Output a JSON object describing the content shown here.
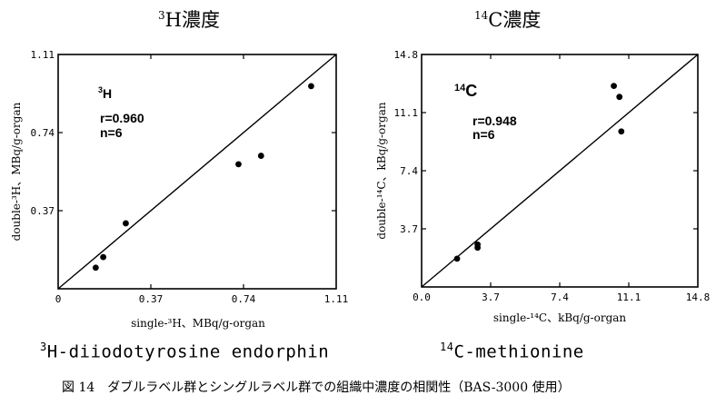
{
  "page": {
    "title_left_sup": "3",
    "title_left_text": "H濃度",
    "title_right_sup": "14",
    "title_right_text": "C濃度",
    "sub_left_sup": "3",
    "sub_left_text": "H-diiodotyrosine endorphin",
    "sub_right_sup": "14",
    "sub_right_text": "C-methionine",
    "caption": "図 14　ダブルラベル群とシングルラベル群での組織中濃度の相関性（BAS-3000 使用）"
  },
  "chart_data": [
    {
      "type": "scatter",
      "title": "³H濃度",
      "xlabel": "single-³H、MBq/g-organ",
      "ylabel": "double-³H、MBq/g-organ",
      "xlim": [
        0,
        1.11
      ],
      "ylim": [
        0,
        1.11
      ],
      "xticks": [
        "0",
        "0.37",
        "0.74",
        "1.11"
      ],
      "yticks": [
        "0",
        "0.37",
        "0.74",
        "1.11"
      ],
      "points": [
        [
          0.15,
          0.1
        ],
        [
          0.18,
          0.15
        ],
        [
          0.27,
          0.31
        ],
        [
          0.72,
          0.59
        ],
        [
          0.81,
          0.63
        ],
        [
          1.01,
          0.96
        ]
      ],
      "fit_line": [
        [
          0,
          0
        ],
        [
          1.11,
          1.11
        ]
      ],
      "annotations": {
        "label_sup": "3",
        "label_text": "H",
        "r": "r=0.960",
        "n": "n=6"
      }
    },
    {
      "type": "scatter",
      "title": "¹⁴C濃度",
      "xlabel": "single-¹⁴C、kBq/g-organ",
      "ylabel": "double-¹⁴C、kBq/g-organ",
      "xlim": [
        0,
        14.8
      ],
      "ylim": [
        0,
        14.8
      ],
      "xticks": [
        "0.0",
        "3.7",
        "7.4",
        "11.1",
        "14.8"
      ],
      "yticks": [
        "0.0",
        "3.7",
        "7.4",
        "11.1",
        "14.8"
      ],
      "points": [
        [
          1.9,
          1.8
        ],
        [
          3.0,
          2.5
        ],
        [
          3.0,
          2.7
        ],
        [
          10.3,
          12.8
        ],
        [
          10.6,
          12.1
        ],
        [
          10.7,
          9.9
        ]
      ],
      "fit_line": [
        [
          0,
          0
        ],
        [
          14.8,
          14.8
        ]
      ],
      "annotations": {
        "label_sup": "14",
        "label_text": "C",
        "r": "r=0.948",
        "n": "n=6"
      }
    }
  ]
}
